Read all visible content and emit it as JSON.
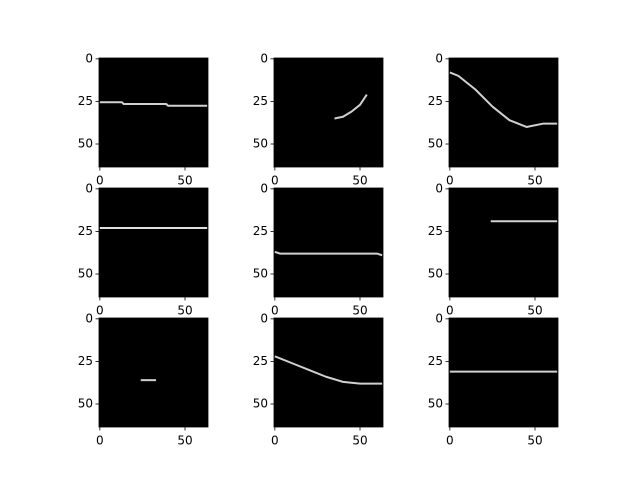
{
  "chart_data": [
    {
      "type": "line",
      "x": [
        0,
        13,
        14,
        39,
        40,
        63
      ],
      "values": [
        25.5,
        25.5,
        26.5,
        26.5,
        27.5,
        27.5
      ],
      "color": "#d0d0d0",
      "background": "#000000",
      "xlim": [
        -0.5,
        63.5
      ],
      "ylim": [
        63.5,
        -0.5
      ],
      "xticks": [
        0,
        50
      ],
      "yticks": [
        0,
        25,
        50
      ]
    },
    {
      "type": "line",
      "x": [
        35,
        40,
        45,
        50,
        54
      ],
      "values": [
        35,
        34,
        31,
        27,
        21
      ],
      "color": "#d0d0d0",
      "background": "#000000",
      "xlim": [
        -0.5,
        63.5
      ],
      "ylim": [
        63.5,
        -0.5
      ],
      "xticks": [
        0,
        50
      ],
      "yticks": [
        0,
        25,
        50
      ]
    },
    {
      "type": "line",
      "x": [
        0,
        5,
        15,
        25,
        35,
        45,
        55,
        63
      ],
      "values": [
        8,
        10,
        18,
        28,
        36,
        40,
        38,
        38
      ],
      "color": "#d0d0d0",
      "background": "#000000",
      "xlim": [
        -0.5,
        63.5
      ],
      "ylim": [
        63.5,
        -0.5
      ],
      "xticks": [
        0,
        50
      ],
      "yticks": [
        0,
        25,
        50
      ]
    },
    {
      "type": "line",
      "x": [
        0,
        63
      ],
      "values": [
        23,
        23
      ],
      "color": "#e0e0e0",
      "background": "#000000",
      "xlim": [
        -0.5,
        63.5
      ],
      "ylim": [
        63.5,
        -0.5
      ],
      "xticks": [
        0,
        50
      ],
      "yticks": [
        0,
        25,
        50
      ]
    },
    {
      "type": "line",
      "x": [
        0,
        3,
        60,
        63
      ],
      "values": [
        37,
        38,
        38,
        39
      ],
      "color": "#d0d0d0",
      "background": "#000000",
      "xlim": [
        -0.5,
        63.5
      ],
      "ylim": [
        63.5,
        -0.5
      ],
      "xticks": [
        0,
        50
      ],
      "yticks": [
        0,
        25,
        50
      ]
    },
    {
      "type": "line",
      "x": [
        24,
        63
      ],
      "values": [
        19,
        19
      ],
      "color": "#d0d0d0",
      "background": "#000000",
      "xlim": [
        -0.5,
        63.5
      ],
      "ylim": [
        63.5,
        -0.5
      ],
      "xticks": [
        0,
        50
      ],
      "yticks": [
        0,
        25,
        50
      ]
    },
    {
      "type": "line",
      "x": [
        24,
        33
      ],
      "values": [
        36,
        36
      ],
      "color": "#d0d0d0",
      "background": "#000000",
      "xlim": [
        -0.5,
        63.5
      ],
      "ylim": [
        63.5,
        -0.5
      ],
      "xticks": [
        0,
        50
      ],
      "yticks": [
        0,
        25,
        50
      ]
    },
    {
      "type": "line",
      "x": [
        0,
        10,
        20,
        30,
        40,
        50,
        63
      ],
      "values": [
        22,
        26,
        30,
        34,
        37,
        38,
        38
      ],
      "color": "#d0d0d0",
      "background": "#000000",
      "xlim": [
        -0.5,
        63.5
      ],
      "ylim": [
        63.5,
        -0.5
      ],
      "xticks": [
        0,
        50
      ],
      "yticks": [
        0,
        25,
        50
      ]
    },
    {
      "type": "line",
      "x": [
        0,
        63
      ],
      "values": [
        31,
        31
      ],
      "color": "#d0d0d0",
      "background": "#000000",
      "xlim": [
        -0.5,
        63.5
      ],
      "ylim": [
        63.5,
        -0.5
      ],
      "xticks": [
        0,
        50
      ],
      "yticks": [
        0,
        25,
        50
      ]
    }
  ]
}
